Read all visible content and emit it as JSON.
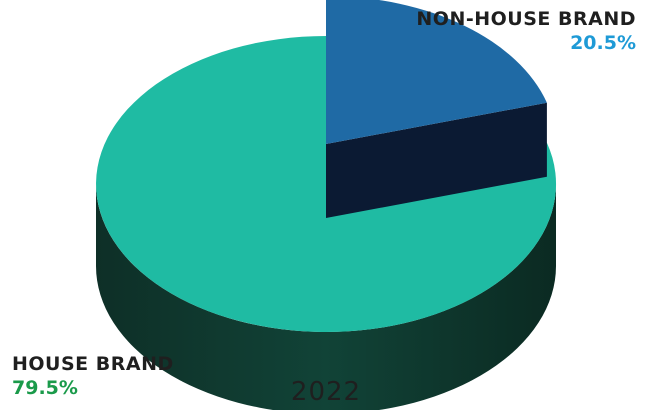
{
  "chart_data": {
    "type": "pie",
    "style": "3d",
    "categories": [
      "NON-HOUSE BRAND",
      "HOUSE BRAND"
    ],
    "values": [
      20.5,
      79.5
    ],
    "value_labels": [
      "20.5%",
      "79.5%"
    ],
    "year": "2022",
    "colors": {
      "non_house_top": "#1f6aa5",
      "non_house_side": "#0b1a33",
      "house_top": "#1fbba3",
      "house_side": "#0f3a30",
      "non_house_value_text": "#1e9ad6",
      "house_value_text": "#1a9a4a"
    }
  }
}
